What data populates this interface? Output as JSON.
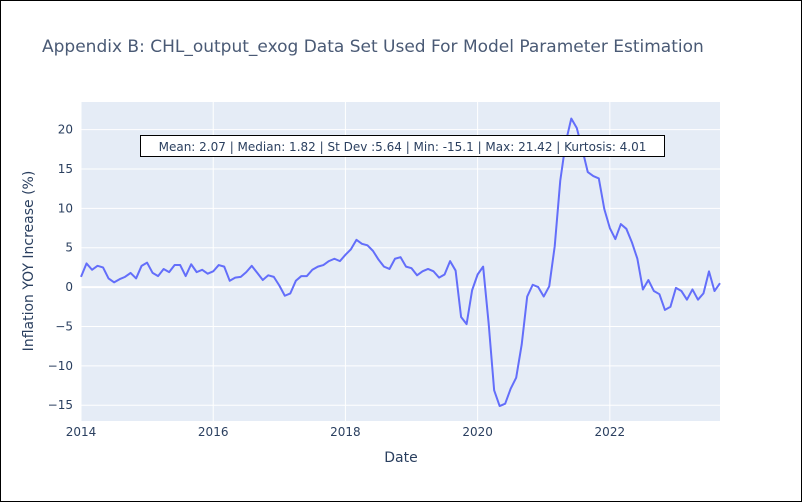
{
  "chart_data": {
    "type": "line",
    "title": "Appendix B: CHL_output_exog Data Set Used For Model Parameter Estimation",
    "xlabel": "Date",
    "ylabel": "Inflation YOY Increase (%)",
    "xlim": [
      "2014-01",
      "2023-09"
    ],
    "ylim": [
      -17,
      23.5
    ],
    "x_ticks": [
      "2014",
      "2016",
      "2018",
      "2020",
      "2022"
    ],
    "y_ticks": [
      -15,
      -10,
      -5,
      0,
      5,
      10,
      15,
      20
    ],
    "grid": true,
    "legend": "none",
    "annotation": "Mean: 2.07 | Median: 1.82 | St Dev :5.64 | Min: -15.1 | Max: 21.42 | Kurtosis: 4.01",
    "colors": {
      "line": "#636efa",
      "plot_bg": "#e5ecf6",
      "grid": "#ffffff",
      "text": "#2a3f5f",
      "title": "#4a5a75"
    },
    "series": [
      {
        "x": [
          "2014-01",
          "2014-02",
          "2014-03",
          "2014-04",
          "2014-05",
          "2014-06",
          "2014-07",
          "2014-08",
          "2014-09",
          "2014-10",
          "2014-11",
          "2014-12",
          "2015-01",
          "2015-02",
          "2015-03",
          "2015-04",
          "2015-05",
          "2015-06",
          "2015-07",
          "2015-08",
          "2015-09",
          "2015-10",
          "2015-11",
          "2015-12",
          "2016-01",
          "2016-02",
          "2016-03",
          "2016-04",
          "2016-05",
          "2016-06",
          "2016-07",
          "2016-08",
          "2016-09",
          "2016-10",
          "2016-11",
          "2016-12",
          "2017-01",
          "2017-02",
          "2017-03",
          "2017-04",
          "2017-05",
          "2017-06",
          "2017-07",
          "2017-08",
          "2017-09",
          "2017-10",
          "2017-11",
          "2017-12",
          "2018-01",
          "2018-02",
          "2018-03",
          "2018-04",
          "2018-05",
          "2018-06",
          "2018-07",
          "2018-08",
          "2018-09",
          "2018-10",
          "2018-11",
          "2018-12",
          "2019-01",
          "2019-02",
          "2019-03",
          "2019-04",
          "2019-05",
          "2019-06",
          "2019-07",
          "2019-08",
          "2019-09",
          "2019-10",
          "2019-11",
          "2019-12",
          "2020-01",
          "2020-02",
          "2020-03",
          "2020-04",
          "2020-05",
          "2020-06",
          "2020-07",
          "2020-08",
          "2020-09",
          "2020-10",
          "2020-11",
          "2020-12",
          "2021-01",
          "2021-02",
          "2021-03",
          "2021-04",
          "2021-05",
          "2021-06",
          "2021-07",
          "2021-08",
          "2021-09",
          "2021-10",
          "2021-11",
          "2021-12",
          "2022-01",
          "2022-02",
          "2022-03",
          "2022-04",
          "2022-05",
          "2022-06",
          "2022-07",
          "2022-08",
          "2022-09",
          "2022-10",
          "2022-11",
          "2022-12",
          "2023-01",
          "2023-02",
          "2023-03",
          "2023-04",
          "2023-05",
          "2023-06",
          "2023-07",
          "2023-08",
          "2023-09"
        ],
        "values": [
          1.3,
          3.0,
          2.2,
          2.7,
          2.5,
          1.1,
          0.6,
          1.0,
          1.3,
          1.8,
          1.1,
          2.7,
          3.1,
          1.8,
          1.4,
          2.3,
          1.9,
          2.8,
          2.8,
          1.4,
          2.9,
          1.9,
          2.2,
          1.7,
          2.0,
          2.8,
          2.6,
          0.8,
          1.2,
          1.3,
          1.9,
          2.7,
          1.8,
          0.9,
          1.5,
          1.3,
          0.2,
          -1.1,
          -0.8,
          0.8,
          1.4,
          1.4,
          2.2,
          2.6,
          2.8,
          3.3,
          3.6,
          3.3,
          4.1,
          4.8,
          6.0,
          5.5,
          5.3,
          4.6,
          3.5,
          2.6,
          2.3,
          3.6,
          3.8,
          2.6,
          2.4,
          1.5,
          2.0,
          2.3,
          2.0,
          1.2,
          1.6,
          3.3,
          2.1,
          -3.8,
          -4.7,
          -0.4,
          1.6,
          2.6,
          -4.6,
          -13.1,
          -15.1,
          -14.8,
          -12.9,
          -11.5,
          -7.3,
          -1.2,
          0.3,
          0.0,
          -1.2,
          0.1,
          5.2,
          13.5,
          18.4,
          21.4,
          20.2,
          17.5,
          14.6,
          14.1,
          13.8,
          9.9,
          7.5,
          6.1,
          8.0,
          7.4,
          5.7,
          3.6,
          -0.3,
          0.9,
          -0.5,
          -0.9,
          -2.9,
          -2.5,
          -0.1,
          -0.5,
          -1.6,
          -0.3,
          -1.6,
          -0.8,
          2.0,
          -0.5,
          0.5
        ]
      }
    ]
  }
}
